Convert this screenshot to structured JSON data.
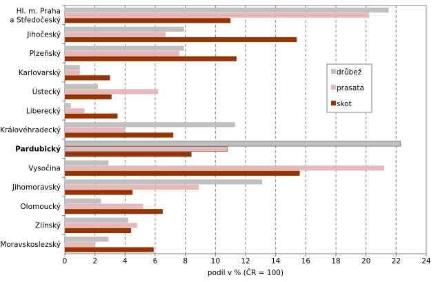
{
  "chart_data": {
    "type": "bar",
    "orientation": "horizontal",
    "title": "",
    "xlabel": "podíl v % (ČR = 100)",
    "ylabel": "",
    "xlim": [
      0,
      24
    ],
    "xticks": [
      0,
      2,
      4,
      6,
      8,
      10,
      12,
      14,
      16,
      18,
      20,
      22,
      24
    ],
    "grid": "vertical dashed",
    "legend_position": "right",
    "categories": [
      [
        "Hl. m. Praha",
        "a Středočeský"
      ],
      [
        "Jihočeský"
      ],
      [
        "Plzeňský"
      ],
      [
        "Karlovarský"
      ],
      [
        "Ústecký"
      ],
      [
        "Liberecký"
      ],
      [
        "Královéhradecký"
      ],
      [
        "Pardubický"
      ],
      [
        "Vysočina"
      ],
      [
        "Jihomoravský"
      ],
      [
        "Olomoucký"
      ],
      [
        "Zlínský"
      ],
      [
        "Moravskoslezský"
      ]
    ],
    "highlighted_category": "Pardubický",
    "series": [
      {
        "name": "drůbež",
        "color": "#c0c0c0",
        "values": [
          21.5,
          7.9,
          7.9,
          1.0,
          2.2,
          0.4,
          11.3,
          22.3,
          2.9,
          13.1,
          2.4,
          4.2,
          2.9
        ]
      },
      {
        "name": "prasata",
        "color": "#e6b8b8",
        "values": [
          20.2,
          6.7,
          7.6,
          1.0,
          6.2,
          1.3,
          4.0,
          10.8,
          21.2,
          8.9,
          5.2,
          4.8,
          2.0
        ]
      },
      {
        "name": "skot",
        "color": "#993300",
        "values": [
          11.0,
          15.4,
          11.4,
          3.0,
          3.1,
          3.5,
          7.2,
          8.4,
          15.6,
          4.5,
          6.5,
          4.4,
          5.9
        ]
      }
    ]
  }
}
